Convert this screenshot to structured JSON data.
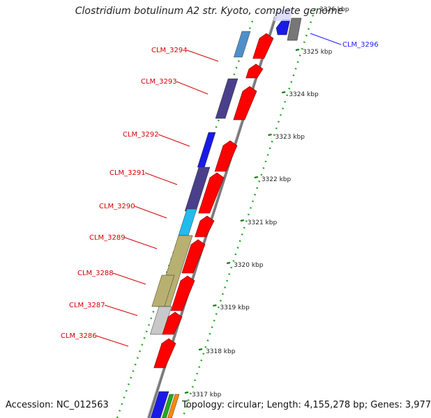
{
  "title": "Clostridium botulinum A2 str. Kyoto, complete genome",
  "footer": {
    "accession": "Accession: NC_012563",
    "summary": "Topology: circular; Length: 4,155,278 bp; Genes: 3,977"
  },
  "colors": {
    "background": "#ffffff",
    "backbone": "#808080",
    "ruler_dots": "#22aa22",
    "forward_gene": "#ff0000",
    "label_red": "#d40000",
    "label_blue": "#1a1aff"
  },
  "genes_reverse": [
    {
      "label": "CLM_3294",
      "color": "#4f8fc9"
    },
    {
      "label": "CLM_3293",
      "color": "#4a3f8a"
    },
    {
      "label": "CLM_3292",
      "color": "#1a1ae6"
    },
    {
      "label": "CLM_3291",
      "color": "#4a3f8a"
    },
    {
      "label": "CLM_3290",
      "color": "#22bbee"
    },
    {
      "label": "CLM_3289",
      "color": "#b8b070"
    },
    {
      "label": "CLM_3288",
      "color": "#b8b070"
    },
    {
      "label": "CLM_3287",
      "color": "#c8c8c8"
    },
    {
      "label": "CLM_3286",
      "color": "#cc0000"
    }
  ],
  "gene_3296": {
    "label": "CLM_3296",
    "color": "#1a1ae6"
  },
  "kbp_ticks": [
    "3325 kbp",
    "3324 kbp",
    "3323 kbp",
    "3322 kbp",
    "3321 kbp",
    "3320 kbp",
    "3319 kbp",
    "3318 kbp",
    "3317 kbp"
  ],
  "kbp_top_partial": "3326 kbp"
}
